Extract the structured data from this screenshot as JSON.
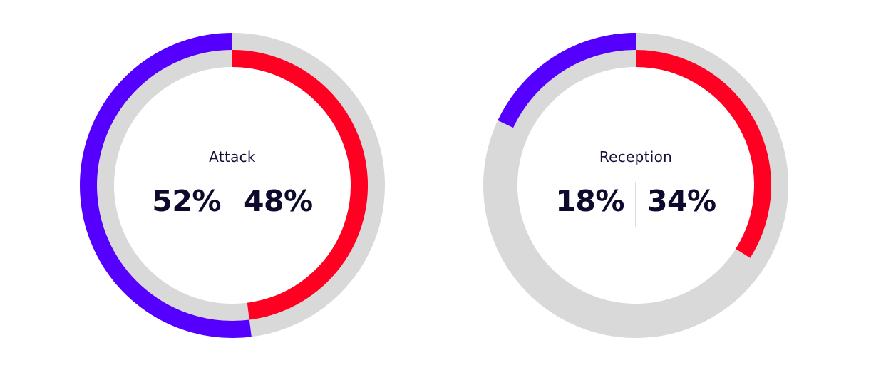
{
  "colors": {
    "home": "#ff0022",
    "away": "#5500ff",
    "track": "#d9d9d9",
    "text": "#0d0a2e"
  },
  "chart_data": [
    {
      "type": "pie",
      "title": "Attack",
      "left_value_label": "52%",
      "right_value_label": "48%",
      "series": [
        {
          "side": "left",
          "value": 52
        },
        {
          "side": "right",
          "value": 48
        }
      ]
    },
    {
      "type": "pie",
      "title": "Reception",
      "left_value_label": "18%",
      "right_value_label": "34%",
      "series": [
        {
          "side": "left",
          "value": 18
        },
        {
          "side": "right",
          "value": 34
        }
      ]
    }
  ]
}
